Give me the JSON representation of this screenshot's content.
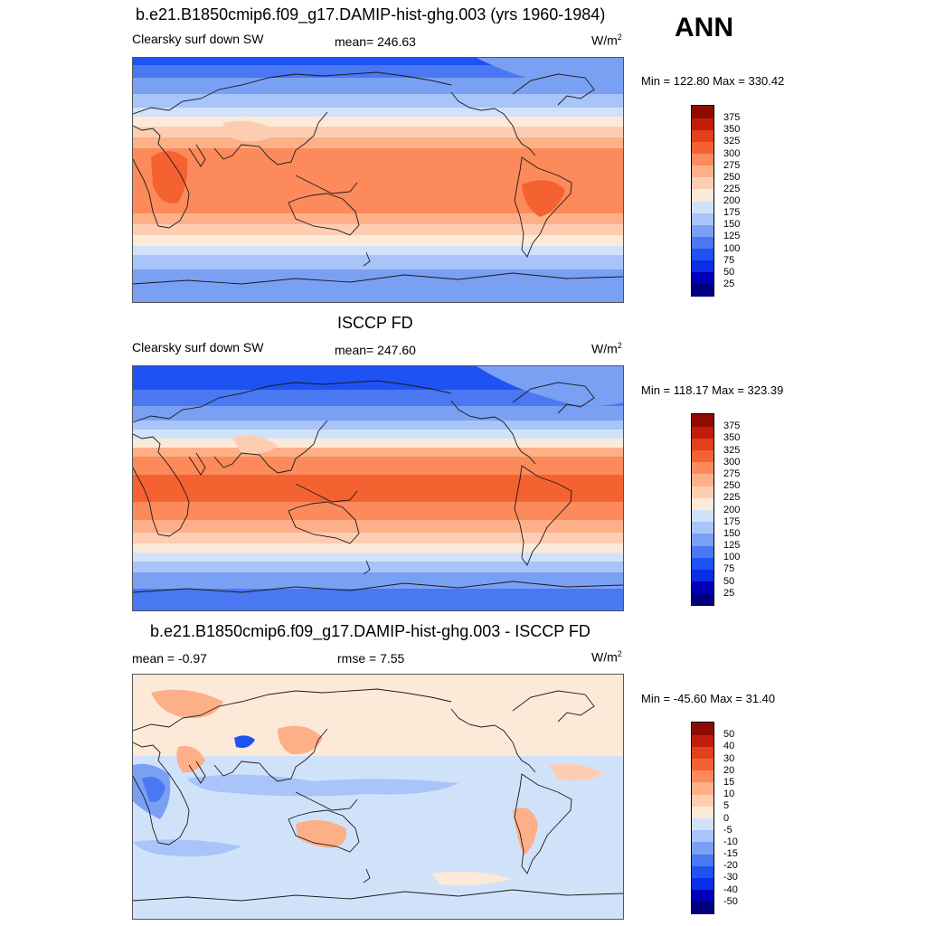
{
  "season": "ANN",
  "panels": [
    {
      "title": "b.e21.B1850cmip6.f09_g17.DAMIP-hist-ghg.003 (yrs 1960-1984)",
      "left_label": "Clearsky surf down SW",
      "center_label": "mean= 246.63",
      "units": "W/m",
      "units_sup": "2",
      "minmax": "Min = 122.80 Max = 330.42"
    },
    {
      "title": "ISCCP FD",
      "left_label": "Clearsky surf down SW",
      "center_label": "mean= 247.60",
      "units": "W/m",
      "units_sup": "2",
      "minmax": "Min = 118.17 Max = 323.39"
    },
    {
      "title": "b.e21.B1850cmip6.f09_g17.DAMIP-hist-ghg.003 - ISCCP FD",
      "left_label": "mean =  -0.97",
      "center_label": "rmse =   7.55",
      "units": "W/m",
      "units_sup": "2",
      "minmax": "Min = -45.60 Max =  31.40"
    }
  ],
  "chart_data": [
    {
      "type": "heatmap",
      "title": "b.e21.B1850cmip6.f09_g17.DAMIP-hist-ghg.003 (yrs 1960-1984)",
      "variable": "Clearsky surf down SW",
      "units": "W/m2",
      "mean": 246.63,
      "min": 122.8,
      "max": 330.42,
      "colorbar_levels": [
        25,
        50,
        75,
        100,
        125,
        150,
        175,
        200,
        225,
        250,
        275,
        300,
        325,
        350,
        375
      ],
      "colorbar_colors": [
        "#00007f",
        "#0000b8",
        "#0a2ee6",
        "#1e52f2",
        "#4a78f2",
        "#7aa0f4",
        "#a8c4f8",
        "#d0e2fa",
        "#fde9d8",
        "#fdcdb2",
        "#fdaf88",
        "#fc8a5a",
        "#f46232",
        "#e2401a",
        "#c01e0a",
        "#8f0b00"
      ]
    },
    {
      "type": "heatmap",
      "title": "ISCCP FD",
      "variable": "Clearsky surf down SW",
      "units": "W/m2",
      "mean": 247.6,
      "min": 118.17,
      "max": 323.39,
      "colorbar_levels": [
        25,
        50,
        75,
        100,
        125,
        150,
        175,
        200,
        225,
        250,
        275,
        300,
        325,
        350,
        375
      ],
      "colorbar_colors": [
        "#00007f",
        "#0000b8",
        "#0a2ee6",
        "#1e52f2",
        "#4a78f2",
        "#7aa0f4",
        "#a8c4f8",
        "#d0e2fa",
        "#fde9d8",
        "#fdcdb2",
        "#fdaf88",
        "#fc8a5a",
        "#f46232",
        "#e2401a",
        "#c01e0a",
        "#8f0b00"
      ]
    },
    {
      "type": "heatmap",
      "title": "b.e21.B1850cmip6.f09_g17.DAMIP-hist-ghg.003 - ISCCP FD",
      "units": "W/m2",
      "mean": -0.97,
      "rmse": 7.55,
      "min": -45.6,
      "max": 31.4,
      "colorbar_levels": [
        -50,
        -40,
        -30,
        -20,
        -15,
        -10,
        -5,
        0,
        5,
        10,
        15,
        20,
        30,
        40,
        50
      ],
      "colorbar_colors": [
        "#00007f",
        "#0000b8",
        "#0a2ee6",
        "#1e52f2",
        "#4a78f2",
        "#7aa0f4",
        "#a8c4f8",
        "#d0e2fa",
        "#fde9d8",
        "#fdcdb2",
        "#fdaf88",
        "#fc8a5a",
        "#f46232",
        "#e2401a",
        "#c01e0a",
        "#8f0b00"
      ]
    }
  ]
}
